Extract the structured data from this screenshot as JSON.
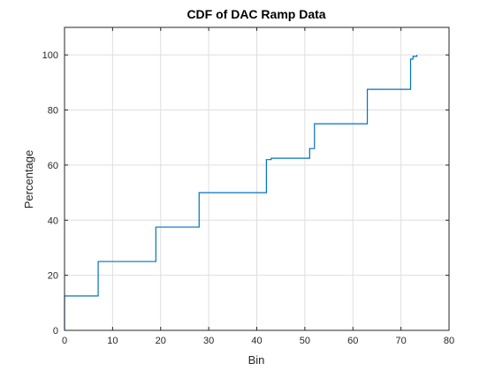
{
  "chart_data": {
    "type": "line",
    "title": "CDF of DAC Ramp Data",
    "xlabel": "Bin",
    "ylabel": "Percentage",
    "xlim": [
      0,
      80
    ],
    "ylim": [
      0,
      110
    ],
    "xticks": [
      0,
      10,
      20,
      30,
      40,
      50,
      60,
      70,
      80
    ],
    "yticks": [
      0,
      20,
      40,
      60,
      80,
      100
    ],
    "xtick_labels": [
      "0",
      "10",
      "20",
      "30",
      "40",
      "50",
      "60",
      "70",
      "80"
    ],
    "ytick_labels": [
      "0",
      "20",
      "40",
      "60",
      "80",
      "100"
    ],
    "grid": true,
    "step": "post",
    "line_color": "#0072BD",
    "series": [
      {
        "x": [
          0,
          0,
          7,
          19,
          28,
          42,
          43,
          51,
          52,
          63,
          72,
          72.5,
          73.3
        ],
        "y": [
          0,
          12.5,
          25,
          37.5,
          50,
          62,
          62.5,
          66,
          75,
          87.5,
          98.5,
          99.5,
          100
        ]
      }
    ]
  }
}
